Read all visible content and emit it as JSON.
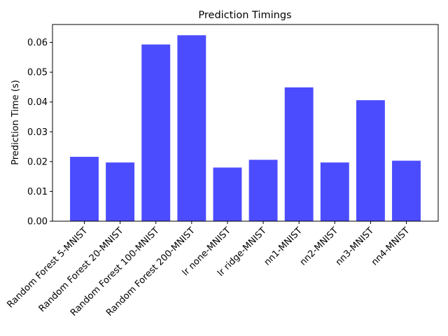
{
  "chart_data": {
    "type": "bar",
    "title": "Prediction Timings",
    "xlabel": "",
    "ylabel": "Prediction Time (s)",
    "categories": [
      "Random Forest 5-MNIST",
      "Random Forest 20-MNIST",
      "Random Forest 100-MNIST",
      "Random Forest 200-MNIST",
      "lr none-MNIST",
      "lr ridge-MNIST",
      "nn1-MNIST",
      "nn2-MNIST",
      "nn3-MNIST",
      "nn4-MNIST"
    ],
    "values": [
      0.0216,
      0.0197,
      0.0593,
      0.0624,
      0.018,
      0.0206,
      0.0449,
      0.0197,
      0.0406,
      0.0203
    ],
    "ylim": [
      0,
      0.066
    ],
    "yticks": [
      0.0,
      0.01,
      0.02,
      0.03,
      0.04,
      0.05,
      0.06
    ],
    "ytick_labels": [
      "0.00",
      "0.01",
      "0.02",
      "0.03",
      "0.04",
      "0.05",
      "0.06"
    ],
    "bar_color": "#4c4cff",
    "grid": false,
    "legend": "none"
  }
}
